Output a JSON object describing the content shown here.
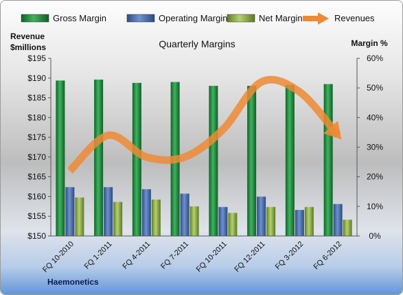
{
  "chart_data": {
    "type": "bar",
    "title": "Quarterly Margins",
    "company": "Haemonetics",
    "y_left_title_line1": "Revenue",
    "y_left_title_line2": "$millions",
    "y_right_title": "Margin %",
    "categories": [
      "FQ 10-2010",
      "FQ 1-2011",
      "FQ 4-2011",
      "FQ 7-2011",
      "FQ 10-2011",
      "FQ 12-2011",
      "FQ 3-2012",
      "FQ 6-2012"
    ],
    "series": [
      {
        "name": "Gross Margin",
        "axis": "right",
        "kind": "bar",
        "color": "#1f8a3c",
        "values": [
          52.5,
          52.8,
          51.7,
          52.0,
          50.7,
          50.7,
          51.0,
          51.3
        ]
      },
      {
        "name": "Operating Margin",
        "axis": "right",
        "kind": "bar",
        "color": "#4468a8",
        "values": [
          16.5,
          16.5,
          15.8,
          14.3,
          9.8,
          13.3,
          8.8,
          10.8
        ]
      },
      {
        "name": "Net Margin",
        "axis": "right",
        "kind": "bar",
        "color": "#8fb04a",
        "values": [
          13.0,
          11.5,
          12.3,
          10.0,
          7.8,
          9.8,
          9.8,
          5.5
        ]
      },
      {
        "name": "Revenues",
        "axis": "left",
        "kind": "line",
        "color": "#ee8a35",
        "values": [
          166.5,
          175.5,
          170.0,
          170.0,
          177.0,
          189.0,
          186.5,
          175.5
        ]
      }
    ],
    "ylim_left": [
      150,
      195
    ],
    "yticks_left": [
      "$150",
      "$155",
      "$160",
      "$165",
      "$170",
      "$175",
      "$180",
      "$185",
      "$190",
      "$195"
    ],
    "ylim_right": [
      0,
      60
    ],
    "yticks_right": [
      "0%",
      "10%",
      "20%",
      "30%",
      "40%",
      "50%",
      "60%"
    ],
    "legend_position": "top",
    "grid": false
  }
}
